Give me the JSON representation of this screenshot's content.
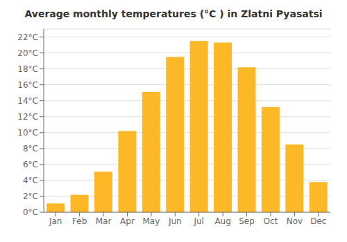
{
  "chart_data": {
    "type": "bar",
    "title": "Average monthly temperatures (°C ) in Zlatni Pyasatsi",
    "categories": [
      "Jan",
      "Feb",
      "Mar",
      "Apr",
      "May",
      "Jun",
      "Jul",
      "Aug",
      "Sep",
      "Oct",
      "Nov",
      "Dec"
    ],
    "values": [
      1.1,
      2.2,
      5.1,
      10.2,
      15.1,
      19.5,
      21.5,
      21.3,
      18.2,
      13.2,
      8.5,
      3.8
    ],
    "color": "#FDB827",
    "ylim": [
      0,
      23
    ],
    "yticks": [
      {
        "value": 0,
        "label": "0°C"
      },
      {
        "value": 2,
        "label": "2°C"
      },
      {
        "value": 4,
        "label": "4°C"
      },
      {
        "value": 6,
        "label": "6°C"
      },
      {
        "value": 8,
        "label": "8°C"
      },
      {
        "value": 10,
        "label": "10°C"
      },
      {
        "value": 12,
        "label": "12°C"
      },
      {
        "value": 14,
        "label": "14°C"
      },
      {
        "value": 16,
        "label": "16°C"
      },
      {
        "value": 18,
        "label": "18°C"
      },
      {
        "value": 20,
        "label": "20°C"
      },
      {
        "value": 22,
        "label": "22°C"
      }
    ],
    "grid": true
  }
}
